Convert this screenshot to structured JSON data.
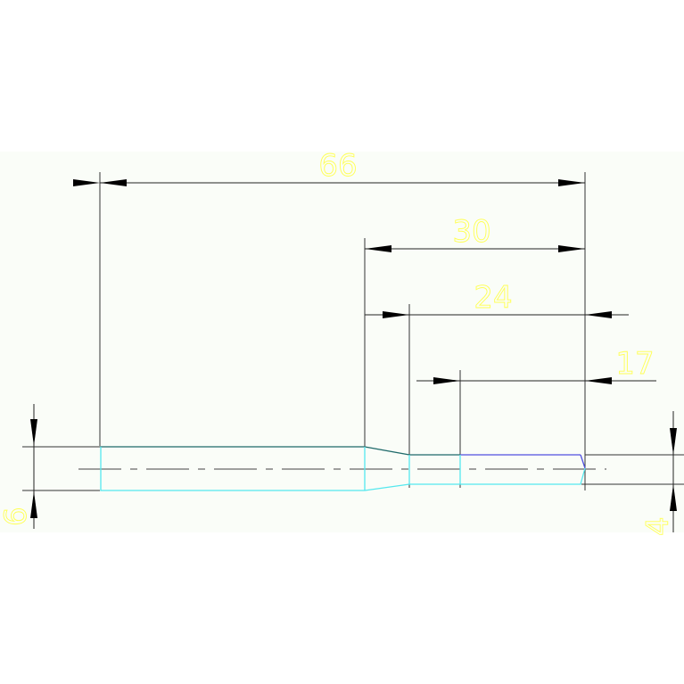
{
  "drawing": {
    "dimensions": {
      "overall_length": "66",
      "step_length": "30",
      "small_section": "24",
      "end_section": "17",
      "large_diameter": "6",
      "small_diameter": "4"
    },
    "colors": {
      "dimension_text": "#ffff55",
      "dimension_lines": "#000000",
      "part_outline_cyan": "#55e8ee",
      "part_outline_teal": "#1f6a6a",
      "part_outline_blue": "#5050e0",
      "drawing_background": "#fafdf8"
    }
  }
}
